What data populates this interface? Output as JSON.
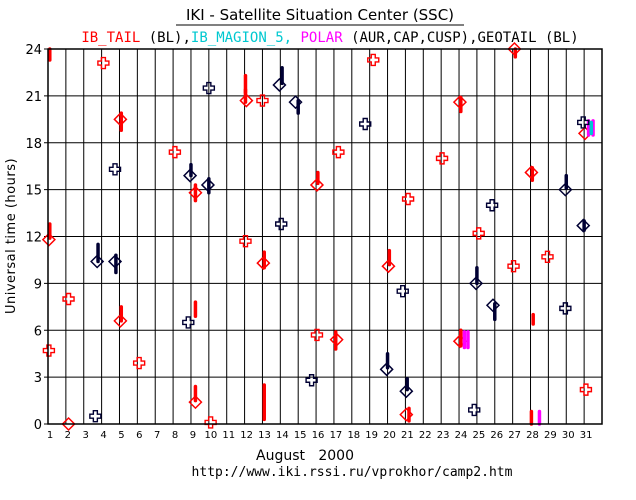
{
  "chart_data": {
    "type": "scatter",
    "title": "IKI - Satellite Situation Center (SSC)",
    "legend": [
      {
        "text": "IB_TAIL",
        "color": "#ff0000"
      },
      {
        "text": " (BL),",
        "color": "#000000"
      },
      {
        "text": "IB_MAGION_5,",
        "color": "#00c8d0"
      },
      {
        "text": " POLAR",
        "color": "#ff00ff"
      },
      {
        "text": " (AUR,CAP,CUSP),",
        "color": "#000000"
      },
      {
        "text": "GEOTAIL",
        "color": "#000000"
      },
      {
        "text": " (BL)",
        "color": "#000000"
      }
    ],
    "ylabel": "Universal time (hours)",
    "xlabel": "August   2000",
    "url": "http://www.iki.rssi.ru/vprokhor/camp2.htm",
    "xlim": [
      1,
      32
    ],
    "ylim": [
      0,
      24
    ],
    "y_ticks": [
      "0",
      "3",
      "6",
      "9",
      "12",
      "15",
      "18",
      "21",
      "24"
    ],
    "x_ticks": [
      "1",
      "2",
      "3",
      "4",
      "5",
      "6",
      "7",
      "8",
      "9",
      "10",
      "11",
      "12",
      "13",
      "14",
      "15",
      "16",
      "17",
      "18",
      "19",
      "20",
      "21",
      "22",
      "23",
      "24",
      "25",
      "26",
      "27",
      "28",
      "29",
      "30",
      "31"
    ],
    "grid": true,
    "colors": {
      "ib_tail": "#ff0000",
      "magion": "#00c8d0",
      "polar": "#ff00ff",
      "geotail": "#000033"
    },
    "series": [
      {
        "name": "IB_TAIL",
        "color": "#ff0000",
        "diamonds": [
          [
            1.05,
            11.8
          ],
          [
            2.15,
            0.0
          ],
          [
            5.05,
            6.6
          ],
          [
            5.05,
            19.5
          ],
          [
            9.25,
            1.4
          ],
          [
            9.25,
            14.8
          ],
          [
            12.1,
            20.7
          ],
          [
            13.05,
            10.3
          ],
          [
            16.05,
            15.3
          ],
          [
            17.15,
            5.4
          ],
          [
            20.05,
            10.1
          ],
          [
            21.05,
            0.6
          ],
          [
            24.05,
            5.3
          ],
          [
            24.05,
            20.6
          ],
          [
            27.1,
            24.0
          ],
          [
            28.05,
            16.1
          ],
          [
            31.05,
            18.6
          ]
        ],
        "crosses": [
          [
            1.05,
            4.7
          ],
          [
            2.15,
            8.0
          ],
          [
            4.1,
            23.1
          ],
          [
            6.1,
            3.9
          ],
          [
            8.1,
            17.4
          ],
          [
            10.1,
            0.1
          ],
          [
            12.05,
            11.7
          ],
          [
            13.0,
            20.7
          ],
          [
            16.05,
            5.7
          ],
          [
            17.25,
            17.4
          ],
          [
            19.2,
            23.3
          ],
          [
            21.15,
            14.4
          ],
          [
            23.05,
            17.0
          ],
          [
            25.1,
            12.2
          ],
          [
            27.05,
            10.1
          ],
          [
            28.95,
            10.7
          ],
          [
            31.1,
            2.2
          ]
        ],
        "bars": [
          [
            1.1,
            11.9,
            12.8
          ],
          [
            1.1,
            23.3,
            24.0
          ],
          [
            5.1,
            18.8,
            19.9
          ],
          [
            5.1,
            6.6,
            7.5
          ],
          [
            9.25,
            1.5,
            2.4
          ],
          [
            9.25,
            14.3,
            15.3
          ],
          [
            9.25,
            6.9,
            7.8
          ],
          [
            12.05,
            21.2,
            22.3
          ],
          [
            12.05,
            20.6,
            21.4
          ],
          [
            13.1,
            10.0,
            11.0
          ],
          [
            13.1,
            0.3,
            2.5
          ],
          [
            16.1,
            15.4,
            16.1
          ],
          [
            17.1,
            4.8,
            5.9
          ],
          [
            20.1,
            10.2,
            11.1
          ],
          [
            21.2,
            0.2,
            1.0
          ],
          [
            24.1,
            5.0,
            6.0
          ],
          [
            24.1,
            20.0,
            20.9
          ],
          [
            27.15,
            23.5,
            24.0
          ],
          [
            28.1,
            15.6,
            16.4
          ],
          [
            28.15,
            6.4,
            7.0
          ],
          [
            28.05,
            0.0,
            0.8
          ]
        ]
      },
      {
        "name": "POLAR",
        "color": "#ff00ff",
        "bars": [
          [
            24.3,
            4.9,
            5.9
          ],
          [
            24.5,
            4.9,
            5.9
          ],
          [
            28.5,
            0.0,
            0.8
          ],
          [
            31.25,
            18.5,
            19.4
          ],
          [
            31.5,
            18.5,
            19.4
          ]
        ]
      },
      {
        "name": "IB_MAGION_5",
        "color": "#00c8d0",
        "bars": [
          [
            31.4,
            18.6,
            19.3
          ]
        ]
      },
      {
        "name": "GEOTAIL",
        "color": "#000033",
        "diamonds": [
          [
            3.75,
            10.4
          ],
          [
            4.75,
            10.4
          ],
          [
            8.95,
            15.9
          ],
          [
            9.95,
            15.3
          ],
          [
            13.95,
            21.7
          ],
          [
            14.85,
            20.6
          ],
          [
            19.95,
            3.5
          ],
          [
            21.05,
            2.1
          ],
          [
            24.95,
            9.0
          ],
          [
            25.9,
            7.6
          ],
          [
            29.95,
            15.0
          ],
          [
            30.95,
            12.7
          ]
        ],
        "crosses": [
          [
            3.65,
            0.5
          ],
          [
            4.75,
            16.3
          ],
          [
            8.85,
            6.5
          ],
          [
            10.0,
            21.5
          ],
          [
            14.05,
            12.8
          ],
          [
            15.75,
            2.8
          ],
          [
            18.75,
            19.2
          ],
          [
            20.85,
            8.5
          ],
          [
            24.85,
            0.9
          ],
          [
            25.85,
            14.0
          ],
          [
            29.95,
            7.4
          ],
          [
            30.95,
            19.3
          ]
        ],
        "bars": [
          [
            3.8,
            10.4,
            11.5
          ],
          [
            4.8,
            9.7,
            10.8
          ],
          [
            9.0,
            15.9,
            16.6
          ],
          [
            10.0,
            14.8,
            15.7
          ],
          [
            14.1,
            21.8,
            22.8
          ],
          [
            15.0,
            19.9,
            20.7
          ],
          [
            20.0,
            3.6,
            4.5
          ],
          [
            21.1,
            2.2,
            2.9
          ],
          [
            25.0,
            9.0,
            10.0
          ],
          [
            26.0,
            6.7,
            7.7
          ],
          [
            30.0,
            15.1,
            15.9
          ],
          [
            31.0,
            12.4,
            13.0
          ]
        ]
      }
    ]
  }
}
